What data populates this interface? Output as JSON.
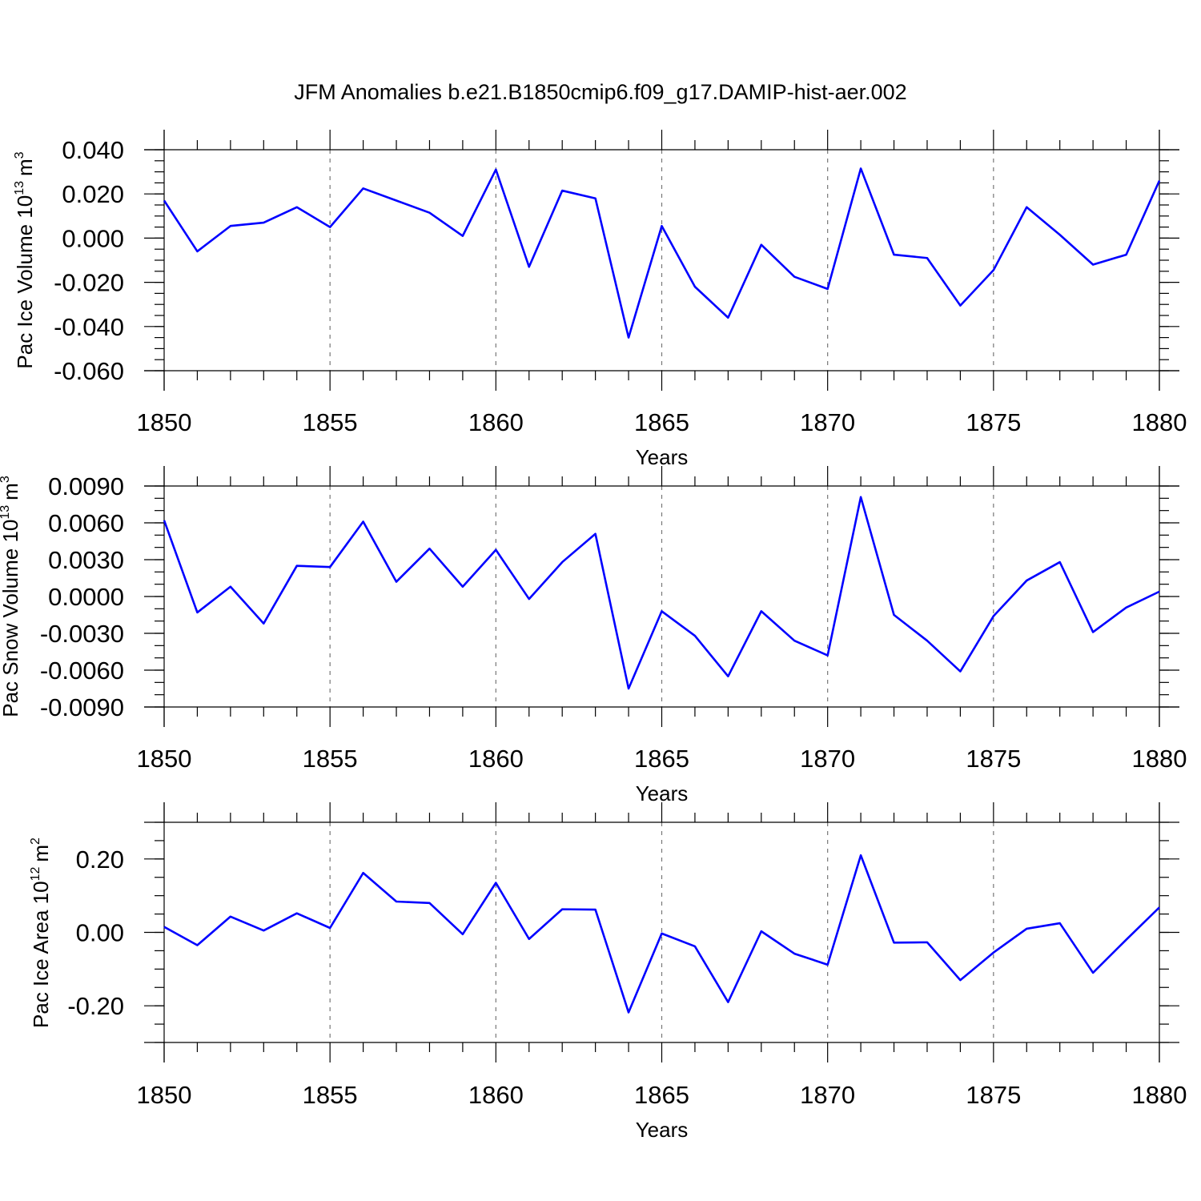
{
  "figure_title": "JFM Anomalies b.e21.B1850cmip6.f09_g17.DAMIP-hist-aer.002",
  "line_color": "#0000ff",
  "chart_data": [
    {
      "type": "line",
      "title": "JFM Anomalies b.e21.B1850cmip6.f09_g17.DAMIP-hist-aer.002",
      "xlabel": "Years",
      "ylabel_main": "Pac Ice Volume 10",
      "ylabel_exp": "13",
      "ylabel_unit": "m",
      "ylabel_unit_exp": "3",
      "xlim": [
        1850,
        1880
      ],
      "ylim": [
        -0.06,
        0.04
      ],
      "xticks": [
        1850,
        1855,
        1860,
        1865,
        1870,
        1875,
        1880
      ],
      "xtick_labels": [
        "1850",
        "1855",
        "1860",
        "1865",
        "1870",
        "1875",
        "1880"
      ],
      "yticks": [
        0.04,
        0.02,
        0.0,
        -0.02,
        -0.04,
        -0.06
      ],
      "ytick_labels": [
        "0.040",
        "0.020",
        "0.000",
        "-0.020",
        "-0.040",
        "-0.060"
      ],
      "y_minor_step": 0.005,
      "grid": "vertical dashed at major x ticks",
      "series": [
        {
          "name": "Pac Ice Volume",
          "x": [
            1850,
            1851,
            1852,
            1853,
            1854,
            1855,
            1856,
            1857,
            1858,
            1859,
            1860,
            1861,
            1862,
            1863,
            1864,
            1865,
            1866,
            1867,
            1868,
            1869,
            1870,
            1871,
            1872,
            1873,
            1874,
            1875,
            1876,
            1877,
            1878,
            1879,
            1880
          ],
          "values": [
            0.017,
            -0.006,
            0.0055,
            0.007,
            0.014,
            0.005,
            0.0225,
            0.017,
            0.0115,
            0.001,
            0.031,
            -0.013,
            0.0215,
            0.018,
            -0.045,
            0.0055,
            -0.022,
            -0.036,
            -0.003,
            -0.0175,
            -0.023,
            0.0315,
            -0.0075,
            -0.009,
            -0.0305,
            -0.0145,
            0.014,
            0.0015,
            -0.012,
            -0.0075,
            0.026
          ]
        }
      ]
    },
    {
      "type": "line",
      "xlabel": "Years",
      "ylabel_main": "Pac Snow Volume 10",
      "ylabel_exp": "13",
      "ylabel_unit": "m",
      "ylabel_unit_exp": "3",
      "xlim": [
        1850,
        1880
      ],
      "ylim": [
        -0.009,
        0.009
      ],
      "xticks": [
        1850,
        1855,
        1860,
        1865,
        1870,
        1875,
        1880
      ],
      "xtick_labels": [
        "1850",
        "1855",
        "1860",
        "1865",
        "1870",
        "1875",
        "1880"
      ],
      "yticks": [
        0.009,
        0.006,
        0.003,
        0.0,
        -0.003,
        -0.006,
        -0.009
      ],
      "ytick_labels": [
        "0.0090",
        "0.0060",
        "0.0030",
        "0.0000",
        "-0.0030",
        "-0.0060",
        "-0.0090"
      ],
      "y_minor_step": 0.001,
      "grid": "vertical dashed at major x ticks",
      "series": [
        {
          "name": "Pac Snow Volume",
          "x": [
            1850,
            1851,
            1852,
            1853,
            1854,
            1855,
            1856,
            1857,
            1858,
            1859,
            1860,
            1861,
            1862,
            1863,
            1864,
            1865,
            1866,
            1867,
            1868,
            1869,
            1870,
            1871,
            1872,
            1873,
            1874,
            1875,
            1876,
            1877,
            1878,
            1879,
            1880
          ],
          "values": [
            0.0062,
            -0.0013,
            0.0008,
            -0.0022,
            0.0025,
            0.0024,
            0.0061,
            0.0012,
            0.0039,
            0.0008,
            0.0038,
            -0.0002,
            0.0028,
            0.0051,
            -0.0075,
            -0.0012,
            -0.0032,
            -0.0065,
            -0.0012,
            -0.0036,
            -0.0048,
            0.0081,
            -0.0015,
            -0.0036,
            -0.0061,
            -0.0016,
            0.0013,
            0.0028,
            -0.0029,
            -0.0009,
            0.0004
          ]
        }
      ]
    },
    {
      "type": "line",
      "xlabel": "Years",
      "ylabel_main": "Pac Ice Area 10",
      "ylabel_exp": "12",
      "ylabel_unit": "m",
      "ylabel_unit_exp": "2",
      "xlim": [
        1850,
        1880
      ],
      "ylim": [
        -0.3,
        0.3
      ],
      "xticks": [
        1850,
        1855,
        1860,
        1865,
        1870,
        1875,
        1880
      ],
      "xtick_labels": [
        "1850",
        "1855",
        "1860",
        "1865",
        "1870",
        "1875",
        "1880"
      ],
      "yticks": [
        0.2,
        0.0,
        -0.2
      ],
      "ytick_labels": [
        "0.20",
        "0.00",
        "-0.20"
      ],
      "y_minor_step": 0.05,
      "grid": "vertical dashed at major x ticks",
      "series": [
        {
          "name": "Pac Ice Area",
          "x": [
            1850,
            1851,
            1852,
            1853,
            1854,
            1855,
            1856,
            1857,
            1858,
            1859,
            1860,
            1861,
            1862,
            1863,
            1864,
            1865,
            1866,
            1867,
            1868,
            1869,
            1870,
            1871,
            1872,
            1873,
            1874,
            1875,
            1876,
            1877,
            1878,
            1879,
            1880
          ],
          "values": [
            0.015,
            -0.035,
            0.043,
            0.005,
            0.052,
            0.012,
            0.162,
            0.084,
            0.08,
            -0.005,
            0.135,
            -0.018,
            0.063,
            0.062,
            -0.218,
            -0.003,
            -0.038,
            -0.19,
            0.003,
            -0.058,
            -0.088,
            0.21,
            -0.028,
            -0.027,
            -0.13,
            -0.055,
            0.01,
            0.025,
            -0.11,
            -0.02,
            0.068
          ]
        }
      ]
    }
  ]
}
